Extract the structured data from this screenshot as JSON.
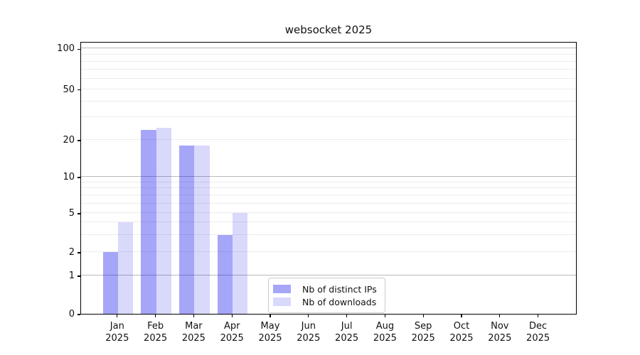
{
  "chart_data": {
    "type": "bar",
    "title": "websocket 2025",
    "categories": [
      {
        "month": "Jan",
        "year": "2025"
      },
      {
        "month": "Feb",
        "year": "2025"
      },
      {
        "month": "Mar",
        "year": "2025"
      },
      {
        "month": "Apr",
        "year": "2025"
      },
      {
        "month": "May",
        "year": "2025"
      },
      {
        "month": "Jun",
        "year": "2025"
      },
      {
        "month": "Jul",
        "year": "2025"
      },
      {
        "month": "Aug",
        "year": "2025"
      },
      {
        "month": "Sep",
        "year": "2025"
      },
      {
        "month": "Oct",
        "year": "2025"
      },
      {
        "month": "Nov",
        "year": "2025"
      },
      {
        "month": "Dec",
        "year": "2025"
      }
    ],
    "series": [
      {
        "name": "Nb of distinct IPs",
        "color": "rgba(0,0,235,0.35)",
        "values": [
          2,
          24,
          18,
          3,
          0,
          0,
          0,
          0,
          0,
          0,
          0,
          0
        ]
      },
      {
        "name": "Nb of downloads",
        "color": "rgba(0,0,235,0.15)",
        "values": [
          4,
          25,
          18,
          5,
          0,
          0,
          0,
          0,
          0,
          0,
          0,
          0
        ]
      }
    ],
    "y_axis": {
      "scale": "log-like",
      "ticks": [
        0,
        1,
        2,
        5,
        10,
        20,
        50,
        100
      ],
      "tick_fractions": {
        "0": 0,
        "1": 0.1406,
        "2": 0.2266,
        "5": 0.3698,
        "10": 0.5026,
        "20": 0.638,
        "50": 0.8237,
        "100": 0.9727
      },
      "minor_gridlines": [
        2,
        3,
        4,
        5,
        6,
        7,
        8,
        9,
        20,
        30,
        40,
        50,
        60,
        70,
        80,
        90
      ],
      "major_gridlines": [
        1,
        10,
        100
      ]
    },
    "legend": {
      "position": "bottom-center",
      "items": [
        "Nb of distinct IPs",
        "Nb of downloads"
      ]
    },
    "colors": {
      "bar_distinct_ips": "rgba(0,0,235,0.35)",
      "bar_downloads": "rgba(0,0,235,0.15)",
      "grid_minor": "#ececec",
      "grid_major": "#b9b9b9",
      "axis": "#000000",
      "text": "#111111",
      "background": "#ffffff"
    }
  }
}
